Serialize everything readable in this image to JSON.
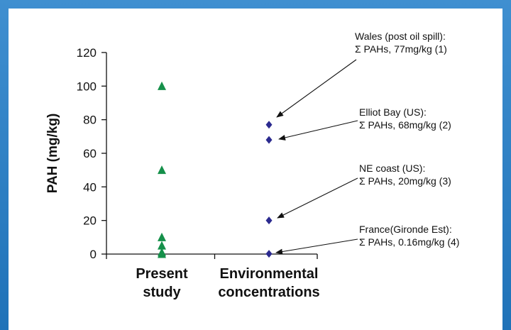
{
  "chart_data": {
    "type": "scatter",
    "ylabel": "PAH (mg/kg)",
    "ylim": [
      0,
      120
    ],
    "yticks": [
      0,
      20,
      40,
      60,
      80,
      100,
      120
    ],
    "categories": [
      {
        "lines": [
          "Present",
          "study"
        ]
      },
      {
        "lines": [
          "Environmental",
          "concentrations"
        ]
      }
    ],
    "series": [
      {
        "category_index": 0,
        "marker": "triangle",
        "color": "#15904a",
        "values": [
          100,
          50,
          10,
          5,
          1,
          0
        ]
      },
      {
        "category_index": 1,
        "marker": "diamond",
        "color": "#2b2a8f",
        "values": [
          77,
          68,
          20,
          0.16
        ]
      }
    ],
    "annotations": [
      {
        "lines": [
          "Wales (post oil spill):",
          "Σ PAHs, 77mg/kg (1)"
        ],
        "target_value": 77
      },
      {
        "lines": [
          "Elliot Bay (US):",
          "Σ PAHs, 68mg/kg (2)"
        ],
        "target_value": 68
      },
      {
        "lines": [
          "NE coast (US):",
          "Σ PAHs, 20mg/kg (3)"
        ],
        "target_value": 20
      },
      {
        "lines": [
          "France(Gironde Est):",
          "Σ PAHs, 0.16mg/kg (4)"
        ],
        "target_value": 0.16
      }
    ]
  }
}
